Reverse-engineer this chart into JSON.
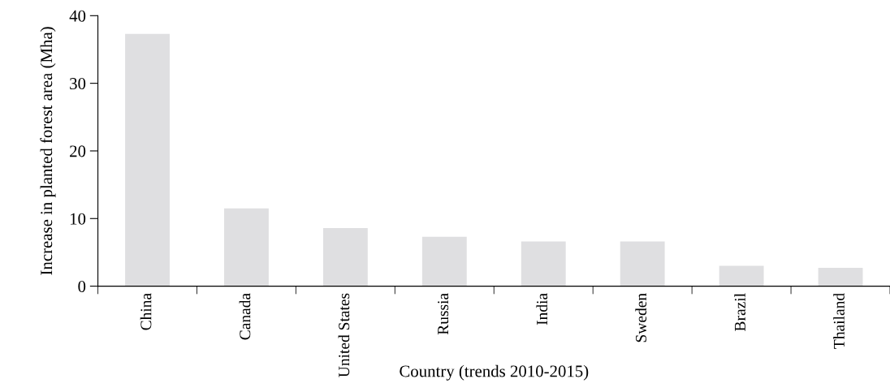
{
  "chart_data": {
    "type": "bar",
    "xlabel": "Country (trends 2010-2015)",
    "ylabel": "Increase in planted forest area (Mha)",
    "categories": [
      "China",
      "Canada",
      "United States",
      "Russia",
      "India",
      "Sweden",
      "Brazil",
      "Thailand"
    ],
    "values": [
      37.3,
      11.5,
      8.6,
      7.3,
      6.6,
      6.6,
      3.0,
      2.7
    ],
    "color": "#dfdfe1",
    "ylim": [
      0,
      40
    ],
    "yticks": [
      0,
      10,
      20,
      30,
      40
    ],
    "grid": false
  }
}
